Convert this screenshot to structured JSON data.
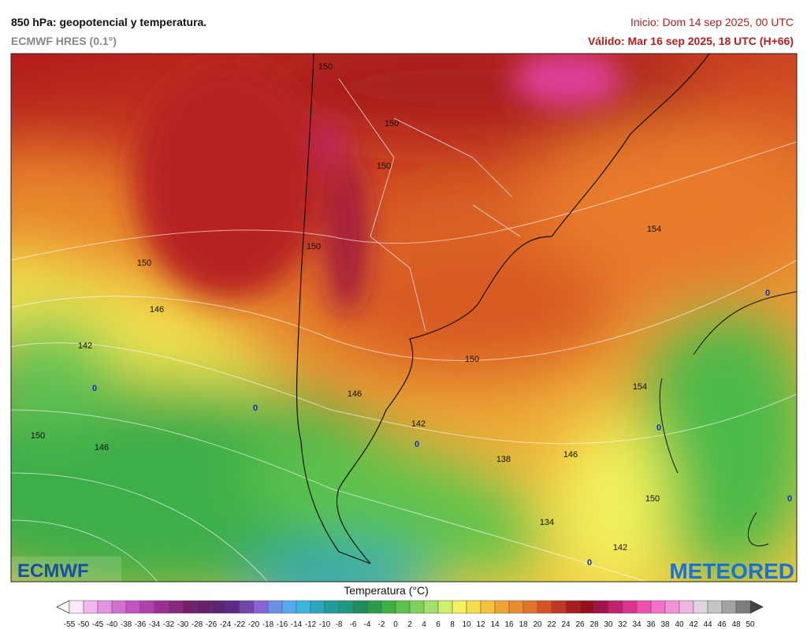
{
  "header": {
    "title": "850 hPa: geopotencial y temperatura.",
    "model": "ECMWF HRES (0.1°)",
    "init": "Inicio: Dom 14 sep 2025, 00 UTC",
    "valid": "Válido: Mar 16 sep 2025, 18 UTC (H+66)"
  },
  "map": {
    "contour_labels": [
      150,
      150,
      150,
      154,
      150,
      150,
      146,
      142,
      0,
      150,
      146,
      154,
      0,
      142,
      0,
      150,
      146,
      138,
      146,
      0,
      150,
      0,
      134,
      142,
      0,
      0
    ]
  },
  "logos": {
    "left": "ECMWF",
    "right": "METEORED"
  },
  "colorbar": {
    "title": "Temperatura (°C)",
    "labels": [
      -55,
      -50,
      -45,
      -40,
      -38,
      -36,
      -34,
      -32,
      -30,
      -28,
      -26,
      -24,
      -22,
      -20,
      -18,
      -16,
      -14,
      -12,
      -10,
      -8,
      -6,
      -4,
      -2,
      0,
      2,
      4,
      6,
      8,
      10,
      12,
      14,
      16,
      18,
      20,
      22,
      24,
      26,
      28,
      30,
      32,
      34,
      36,
      38,
      40,
      42,
      44,
      46,
      48,
      50
    ],
    "colors": [
      "#fbe8fb",
      "#f2b6f0",
      "#e493e2",
      "#d46fd2",
      "#c452c0",
      "#b040b0",
      "#9a3096",
      "#87287e",
      "#74206a",
      "#67206c",
      "#5c2474",
      "#5a2a86",
      "#7444a8",
      "#8a64d6",
      "#6c8ee6",
      "#56a8ec",
      "#3cb4dc",
      "#2ca6bc",
      "#209c9c",
      "#1f9a80",
      "#1f8c60",
      "#2c9c4c",
      "#3eb044",
      "#5cc24c",
      "#7ed25c",
      "#a2e06c",
      "#cff06c",
      "#f2f25c",
      "#f7dc4c",
      "#f6c23e",
      "#f0a436",
      "#e88c30",
      "#e0742a",
      "#d65424",
      "#c03820",
      "#a81e1c",
      "#94101e",
      "#a2124c",
      "#c02270",
      "#dc3290",
      "#ee50b0",
      "#f470c8",
      "#f490d8",
      "#f0b4e2",
      "#e2d2e2",
      "#c4c4c4",
      "#a2a2a2",
      "#7e7e7e"
    ]
  }
}
